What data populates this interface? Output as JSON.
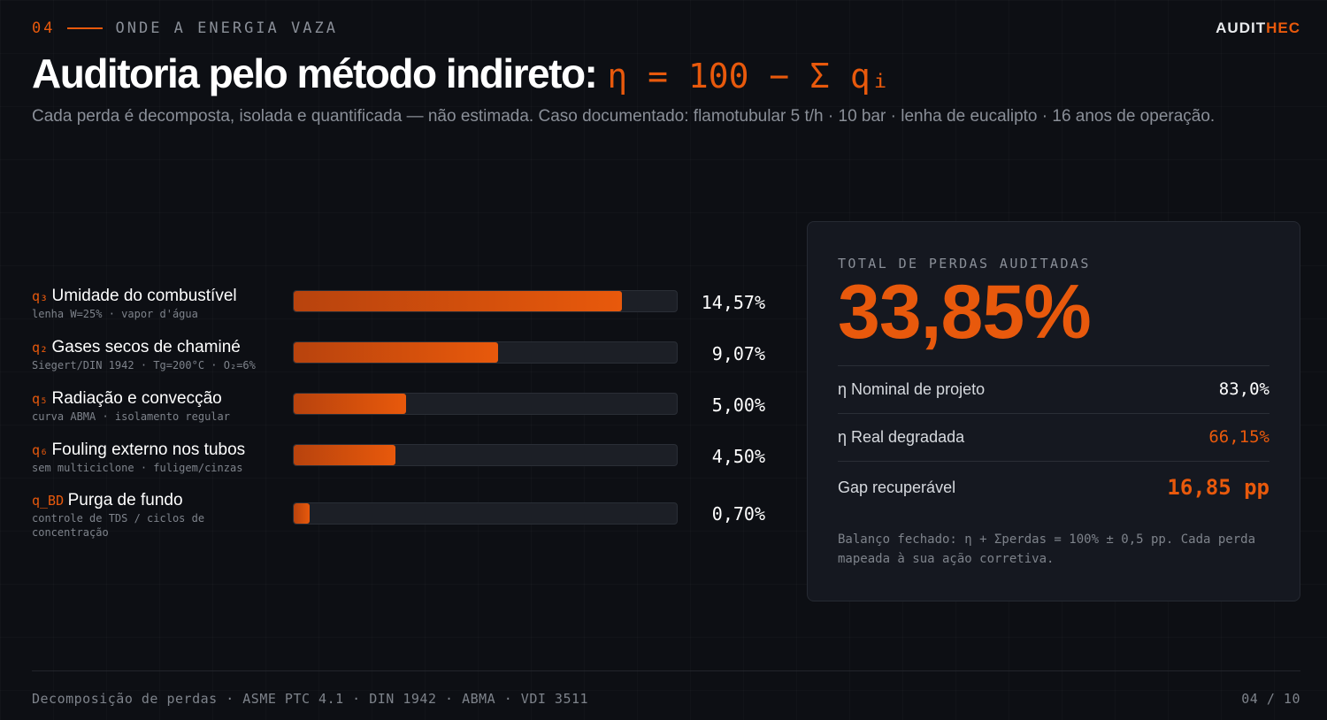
{
  "header": {
    "section_number": "04",
    "section_label": "ONDE A ENERGIA VAZA",
    "logo_part1": "AUDIT",
    "logo_part2": "HEC",
    "title": "Auditoria pelo método indireto:",
    "formula": "η = 100 − Σ qᵢ",
    "subtitle": "Cada perda é decomposta, isolada e quantificada — não estimada. Caso documentado: flamotubular 5 t/h · 10 bar · lenha de eucalipto · 16 anos de operação."
  },
  "losses": [
    {
      "code": "q₃",
      "name": "Umidade do combustível",
      "detail": "lenha W=25% · vapor d'água",
      "value": 14.57,
      "value_label": "14,57%"
    },
    {
      "code": "q₂",
      "name": "Gases secos de chaminé",
      "detail": "Siegert/DIN 1942 · Tg=200°C · O₂=6%",
      "value": 9.07,
      "value_label": "9,07%"
    },
    {
      "code": "q₅",
      "name": "Radiação e convecção",
      "detail": "curva ABMA · isolamento regular",
      "value": 5.0,
      "value_label": "5,00%"
    },
    {
      "code": "q₆",
      "name": "Fouling externo nos tubos",
      "detail": "sem multiciclone · fuligem/cinzas",
      "value": 4.5,
      "value_label": "4,50%"
    },
    {
      "code": "q_BD",
      "name": "Purga de fundo",
      "detail": "controle de TDS / ciclos de concentração",
      "value": 0.7,
      "value_label": "0,70%"
    }
  ],
  "bar_scale_max": 17.0,
  "summary": {
    "caption": "TOTAL DE PERDAS AUDITADAS",
    "total": "33,85%",
    "nominal_label": "η Nominal de projeto",
    "nominal_value": "83,0%",
    "real_label": "η Real degradada",
    "real_value": "66,15%",
    "gap_label": "Gap recuperável",
    "gap_value": "16,85 pp",
    "note": "Balanço fechado: η + Σperdas = 100% ± 0,5 pp. Cada perda mapeada à sua ação corretiva."
  },
  "footer": {
    "sources": "Decomposição de perdas · ASME PTC 4.1 · DIN 1942 · ABMA · VDI 3511",
    "page": "04 / 10"
  },
  "colors": {
    "accent": "#e8590c",
    "background": "#0d0f14",
    "card": "#151820"
  }
}
